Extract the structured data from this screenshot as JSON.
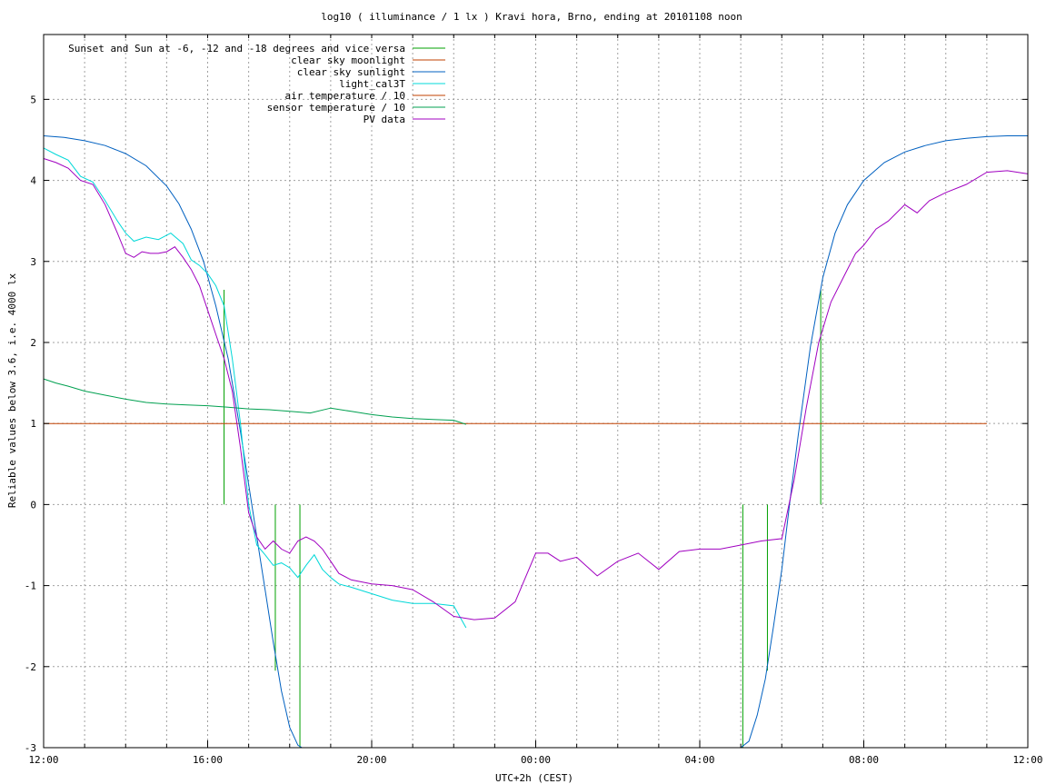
{
  "chart_data": {
    "type": "line",
    "title": "log10 ( illuminance / 1 lx ) Kravi hora, Brno, ending at 20101108 noon",
    "xlabel": "UTC+2h (CEST)",
    "ylabel": "Reliable values below 3.6, i.e. 4000 lx",
    "x_unit": "hours since 12:00",
    "xlim": [
      0,
      24
    ],
    "ylim": [
      -3,
      5.8
    ],
    "x_ticks": [
      {
        "x": 0,
        "label": "12:00"
      },
      {
        "x": 4,
        "label": "16:00"
      },
      {
        "x": 8,
        "label": "20:00"
      },
      {
        "x": 12,
        "label": "00:00"
      },
      {
        "x": 16,
        "label": "04:00"
      },
      {
        "x": 20,
        "label": "08:00"
      },
      {
        "x": 24,
        "label": "12:00"
      }
    ],
    "y_ticks": [
      {
        "y": -3,
        "label": "-3"
      },
      {
        "y": -2,
        "label": "-2"
      },
      {
        "y": -1,
        "label": "-1"
      },
      {
        "y": 0,
        "label": "0"
      },
      {
        "y": 1,
        "label": "1"
      },
      {
        "y": 2,
        "label": "2"
      },
      {
        "y": 3,
        "label": "3"
      },
      {
        "y": 4,
        "label": "4"
      },
      {
        "y": 5,
        "label": "5"
      }
    ],
    "grid": true,
    "legend_position": "top-left",
    "series": [
      {
        "name": "Sunset and Sun at -6, -12 and -18 degrees and vice versa",
        "color": "#00a000",
        "style": "vlines",
        "segments": [
          {
            "x": 4.4,
            "y0": 0,
            "y1": 2.65
          },
          {
            "x": 5.65,
            "y0": 0,
            "y1": -2.05
          },
          {
            "x": 6.25,
            "y0": 0,
            "y1": -3.0
          },
          {
            "x": 17.05,
            "y0": 0,
            "y1": -3.0
          },
          {
            "x": 17.65,
            "y0": 0,
            "y1": -2.05
          },
          {
            "x": 18.95,
            "y0": 0,
            "y1": 2.65
          }
        ]
      },
      {
        "name": "clear sky moonlight",
        "color": "#c04000",
        "x": [
          0,
          23.0
        ],
        "y": [
          1.0,
          1.0
        ]
      },
      {
        "name": "clear sky sunlight",
        "color": "#0060c0",
        "segments": [
          {
            "x": [
              0,
              0.5,
              1,
              1.5,
              2,
              2.5,
              3,
              3.3,
              3.6,
              3.9,
              4.2,
              4.5,
              4.8,
              5.0,
              5.2,
              5.4,
              5.6,
              5.8,
              6.0,
              6.2,
              6.3
            ],
            "y": [
              4.55,
              4.53,
              4.49,
              4.43,
              4.33,
              4.18,
              3.93,
              3.71,
              3.4,
              3.0,
              2.45,
              1.8,
              0.9,
              0.25,
              -0.4,
              -1.05,
              -1.7,
              -2.3,
              -2.75,
              -2.97,
              -3.0
            ]
          },
          {
            "x": [
              17.0,
              17.2,
              17.4,
              17.6,
              17.8,
              18.0,
              18.2,
              18.4,
              18.7,
              19.0,
              19.3,
              19.6,
              20.0,
              20.5,
              21.0,
              21.5,
              22.0,
              22.5,
              23.0,
              23.5,
              24.0
            ],
            "y": [
              -3.0,
              -2.92,
              -2.6,
              -2.15,
              -1.5,
              -0.8,
              0.05,
              0.85,
              1.95,
              2.8,
              3.35,
              3.7,
              4.0,
              4.22,
              4.35,
              4.43,
              4.49,
              4.52,
              4.54,
              4.55,
              4.55
            ]
          }
        ]
      },
      {
        "name": "light_cal3T",
        "color": "#00d8d8",
        "x": [
          0,
          0.3,
          0.6,
          0.9,
          1.2,
          1.5,
          1.8,
          2.0,
          2.2,
          2.5,
          2.8,
          3.1,
          3.4,
          3.6,
          3.8,
          4.0,
          4.2,
          4.4,
          4.6,
          4.8,
          5.0,
          5.2,
          5.4,
          5.6,
          5.8,
          6.0,
          6.2,
          6.4,
          6.6,
          6.8,
          7.0,
          7.2,
          7.5,
          8.0,
          8.5,
          9.0,
          9.5,
          10.0,
          10.3
        ],
        "y": [
          4.4,
          4.32,
          4.25,
          4.05,
          3.98,
          3.75,
          3.5,
          3.35,
          3.25,
          3.3,
          3.27,
          3.35,
          3.22,
          3.02,
          2.95,
          2.85,
          2.7,
          2.45,
          1.8,
          1.0,
          0.0,
          -0.5,
          -0.62,
          -0.75,
          -0.72,
          -0.78,
          -0.9,
          -0.75,
          -0.62,
          -0.8,
          -0.9,
          -0.98,
          -1.02,
          -1.1,
          -1.18,
          -1.22,
          -1.22,
          -1.25,
          -1.52
        ]
      },
      {
        "name": "air temperature / 10",
        "color": "#c04000",
        "x": [],
        "y": []
      },
      {
        "name": "sensor temperature / 10",
        "color": "#00a050",
        "x": [
          0,
          0.3,
          0.6,
          1.0,
          1.5,
          2.0,
          2.5,
          3.0,
          3.5,
          4.0,
          4.5,
          5.0,
          5.5,
          6.0,
          6.5,
          7.0,
          7.5,
          8.0,
          8.5,
          9.0,
          9.5,
          10.0,
          10.3
        ],
        "y": [
          1.55,
          1.5,
          1.46,
          1.4,
          1.35,
          1.3,
          1.26,
          1.24,
          1.23,
          1.22,
          1.2,
          1.18,
          1.17,
          1.15,
          1.13,
          1.19,
          1.15,
          1.11,
          1.08,
          1.06,
          1.05,
          1.04,
          0.99
        ]
      },
      {
        "name": "PV data",
        "color": "#a000c0",
        "x": [
          0,
          0.3,
          0.6,
          0.9,
          1.2,
          1.5,
          1.8,
          2.0,
          2.2,
          2.4,
          2.6,
          2.8,
          3.0,
          3.2,
          3.4,
          3.6,
          3.8,
          4.0,
          4.2,
          4.4,
          4.6,
          4.8,
          5.0,
          5.2,
          5.4,
          5.6,
          5.8,
          6.0,
          6.2,
          6.4,
          6.6,
          6.8,
          7.0,
          7.2,
          7.5,
          8.0,
          8.5,
          9.0,
          9.5,
          10.0,
          10.5,
          11.0,
          11.5,
          12.0,
          12.3,
          12.6,
          13.0,
          13.5,
          14.0,
          14.5,
          15.0,
          15.5,
          16.0,
          16.5,
          17.0,
          17.5,
          18.0,
          18.3,
          18.6,
          18.9,
          19.2,
          19.5,
          19.8,
          20.0,
          20.3,
          20.6,
          21.0,
          21.3,
          21.6,
          22.0,
          22.5,
          23.0,
          23.5,
          24.0
        ],
        "y": [
          4.27,
          4.22,
          4.15,
          4.0,
          3.95,
          3.7,
          3.35,
          3.1,
          3.05,
          3.12,
          3.1,
          3.1,
          3.12,
          3.18,
          3.05,
          2.9,
          2.7,
          2.4,
          2.1,
          1.8,
          1.4,
          0.7,
          -0.1,
          -0.4,
          -0.55,
          -0.45,
          -0.55,
          -0.6,
          -0.45,
          -0.4,
          -0.45,
          -0.55,
          -0.7,
          -0.85,
          -0.93,
          -0.98,
          -1.0,
          -1.05,
          -1.2,
          -1.38,
          -1.42,
          -1.4,
          -1.2,
          -0.6,
          -0.6,
          -0.7,
          -0.65,
          -0.88,
          -0.7,
          -0.6,
          -0.8,
          -0.58,
          -0.55,
          -0.55,
          -0.5,
          -0.45,
          -0.42,
          0.3,
          1.2,
          2.0,
          2.5,
          2.8,
          3.1,
          3.2,
          3.4,
          3.5,
          3.7,
          3.6,
          3.75,
          3.85,
          3.95,
          4.1,
          4.12,
          4.08
        ]
      }
    ]
  }
}
